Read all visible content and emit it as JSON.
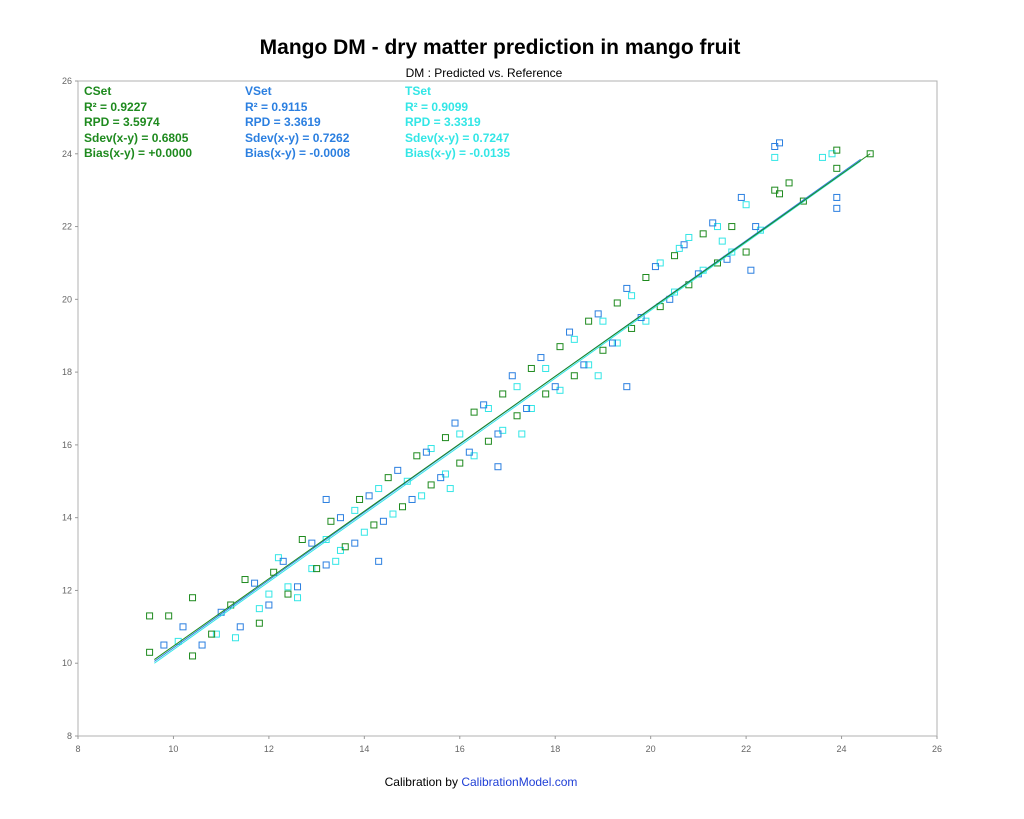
{
  "chart_data": {
    "type": "scatter",
    "title": "Mango DM - dry matter prediction in mango fruit",
    "subtitle": "DM : Predicted vs. Reference",
    "xlabel": "",
    "ylabel": "",
    "xlim": [
      8,
      26
    ],
    "ylim": [
      8,
      26
    ],
    "xticks": [
      "8",
      "10",
      "12",
      "14",
      "16",
      "18",
      "20",
      "22",
      "24",
      "26"
    ],
    "yticks": [
      "8",
      "10",
      "12",
      "14",
      "16",
      "18",
      "20",
      "22",
      "24",
      "26"
    ],
    "grid": false,
    "marker": "open-square",
    "series": [
      {
        "name": "TSet",
        "color": "#33e6e6",
        "fit_line": [
          [
            9.6,
            10.0
          ],
          [
            24.4,
            23.8
          ]
        ],
        "points": [
          [
            10.1,
            10.6
          ],
          [
            10.9,
            10.8
          ],
          [
            11.3,
            10.7
          ],
          [
            11.8,
            11.5
          ],
          [
            12.0,
            11.9
          ],
          [
            12.4,
            12.1
          ],
          [
            12.6,
            11.8
          ],
          [
            12.9,
            12.6
          ],
          [
            13.2,
            13.4
          ],
          [
            13.5,
            13.1
          ],
          [
            13.8,
            14.2
          ],
          [
            14.0,
            13.6
          ],
          [
            14.3,
            14.8
          ],
          [
            14.6,
            14.1
          ],
          [
            14.9,
            15.0
          ],
          [
            15.2,
            14.6
          ],
          [
            15.4,
            15.9
          ],
          [
            15.7,
            15.2
          ],
          [
            16.0,
            16.3
          ],
          [
            16.3,
            15.7
          ],
          [
            16.6,
            17.0
          ],
          [
            16.9,
            16.4
          ],
          [
            17.2,
            17.6
          ],
          [
            17.5,
            17.0
          ],
          [
            17.8,
            18.1
          ],
          [
            18.1,
            17.5
          ],
          [
            18.4,
            18.9
          ],
          [
            18.7,
            18.2
          ],
          [
            19.0,
            19.4
          ],
          [
            19.3,
            18.8
          ],
          [
            19.6,
            20.1
          ],
          [
            19.9,
            19.4
          ],
          [
            20.2,
            21.0
          ],
          [
            20.5,
            20.2
          ],
          [
            20.8,
            21.7
          ],
          [
            21.1,
            20.8
          ],
          [
            21.4,
            22.0
          ],
          [
            21.7,
            21.3
          ],
          [
            22.0,
            22.6
          ],
          [
            22.3,
            21.9
          ],
          [
            22.6,
            23.9
          ],
          [
            23.6,
            23.9
          ],
          [
            23.8,
            24.0
          ],
          [
            21.5,
            21.6
          ],
          [
            17.3,
            16.3
          ],
          [
            15.8,
            14.8
          ],
          [
            13.4,
            12.8
          ],
          [
            12.2,
            12.9
          ],
          [
            18.9,
            17.9
          ],
          [
            20.6,
            21.4
          ]
        ]
      },
      {
        "name": "VSet",
        "color": "#2b7fe0",
        "fit_line": [
          [
            9.6,
            10.05
          ],
          [
            24.4,
            23.85
          ]
        ],
        "points": [
          [
            9.8,
            10.5
          ],
          [
            10.2,
            11.0
          ],
          [
            10.6,
            10.5
          ],
          [
            11.0,
            11.4
          ],
          [
            11.4,
            11.0
          ],
          [
            11.7,
            12.2
          ],
          [
            12.0,
            11.6
          ],
          [
            12.3,
            12.8
          ],
          [
            12.6,
            12.1
          ],
          [
            12.9,
            13.3
          ],
          [
            13.2,
            12.7
          ],
          [
            13.5,
            14.0
          ],
          [
            13.8,
            13.3
          ],
          [
            14.1,
            14.6
          ],
          [
            14.4,
            13.9
          ],
          [
            14.7,
            15.3
          ],
          [
            15.0,
            14.5
          ],
          [
            15.3,
            15.8
          ],
          [
            15.6,
            15.1
          ],
          [
            15.9,
            16.6
          ],
          [
            16.2,
            15.8
          ],
          [
            16.5,
            17.1
          ],
          [
            16.8,
            16.3
          ],
          [
            17.1,
            17.9
          ],
          [
            17.4,
            17.0
          ],
          [
            17.7,
            18.4
          ],
          [
            18.0,
            17.6
          ],
          [
            18.3,
            19.1
          ],
          [
            18.6,
            18.2
          ],
          [
            18.9,
            19.6
          ],
          [
            19.2,
            18.8
          ],
          [
            19.5,
            20.3
          ],
          [
            19.8,
            19.5
          ],
          [
            20.1,
            20.9
          ],
          [
            20.4,
            20.0
          ],
          [
            20.7,
            21.5
          ],
          [
            21.0,
            20.7
          ],
          [
            21.3,
            22.1
          ],
          [
            21.6,
            21.1
          ],
          [
            21.9,
            22.8
          ],
          [
            22.2,
            22.0
          ],
          [
            22.6,
            24.2
          ],
          [
            22.7,
            24.3
          ],
          [
            23.9,
            22.8
          ],
          [
            23.9,
            22.5
          ],
          [
            22.1,
            20.8
          ],
          [
            19.5,
            17.6
          ],
          [
            16.8,
            15.4
          ],
          [
            14.3,
            12.8
          ],
          [
            13.2,
            14.5
          ]
        ]
      },
      {
        "name": "CSet",
        "color": "#1e8a1e",
        "fit_line": [
          [
            9.6,
            10.1
          ],
          [
            24.6,
            24.0
          ]
        ],
        "points": [
          [
            9.5,
            11.3
          ],
          [
            9.5,
            10.3
          ],
          [
            9.9,
            11.3
          ],
          [
            10.4,
            10.2
          ],
          [
            10.4,
            11.8
          ],
          [
            10.8,
            10.8
          ],
          [
            11.2,
            11.6
          ],
          [
            11.5,
            12.3
          ],
          [
            11.8,
            11.1
          ],
          [
            12.1,
            12.5
          ],
          [
            12.4,
            11.9
          ],
          [
            12.7,
            13.4
          ],
          [
            13.0,
            12.6
          ],
          [
            13.3,
            13.9
          ],
          [
            13.6,
            13.2
          ],
          [
            13.9,
            14.5
          ],
          [
            14.2,
            13.8
          ],
          [
            14.5,
            15.1
          ],
          [
            14.8,
            14.3
          ],
          [
            15.1,
            15.7
          ],
          [
            15.4,
            14.9
          ],
          [
            15.7,
            16.2
          ],
          [
            16.0,
            15.5
          ],
          [
            16.3,
            16.9
          ],
          [
            16.6,
            16.1
          ],
          [
            16.9,
            17.4
          ],
          [
            17.2,
            16.8
          ],
          [
            17.5,
            18.1
          ],
          [
            17.8,
            17.4
          ],
          [
            18.1,
            18.7
          ],
          [
            18.4,
            17.9
          ],
          [
            18.7,
            19.4
          ],
          [
            19.0,
            18.6
          ],
          [
            19.3,
            19.9
          ],
          [
            19.6,
            19.2
          ],
          [
            19.9,
            20.6
          ],
          [
            20.2,
            19.8
          ],
          [
            20.5,
            21.2
          ],
          [
            20.8,
            20.4
          ],
          [
            21.1,
            21.8
          ],
          [
            21.4,
            21.0
          ],
          [
            21.7,
            22.0
          ],
          [
            22.0,
            21.3
          ],
          [
            22.6,
            23.0
          ],
          [
            22.7,
            22.9
          ],
          [
            22.9,
            23.2
          ],
          [
            23.2,
            22.7
          ],
          [
            23.9,
            24.1
          ],
          [
            23.9,
            23.6
          ],
          [
            24.6,
            24.0
          ]
        ]
      }
    ],
    "stats": [
      {
        "set": "CSet",
        "color": "#1e8a1e",
        "r2": "R² = 0.9227",
        "rpd": "RPD = 3.5974",
        "sdev": "Sdev(x-y) = 0.6805",
        "bias": "Bias(x-y) = +0.0000"
      },
      {
        "set": "VSet",
        "color": "#2b7fe0",
        "r2": "R² = 0.9115",
        "rpd": "RPD = 3.3619",
        "sdev": "Sdev(x-y) = 0.7262",
        "bias": "Bias(x-y) = -0.0008"
      },
      {
        "set": "TSet",
        "color": "#33e6e6",
        "r2": "R² = 0.9099",
        "rpd": "RPD = 3.3319",
        "sdev": "Sdev(x-y) = 0.7247",
        "bias": "Bias(x-y) = -0.0135"
      }
    ]
  },
  "footer": {
    "prefix": "Calibration by ",
    "link": "CalibrationModel.com"
  }
}
